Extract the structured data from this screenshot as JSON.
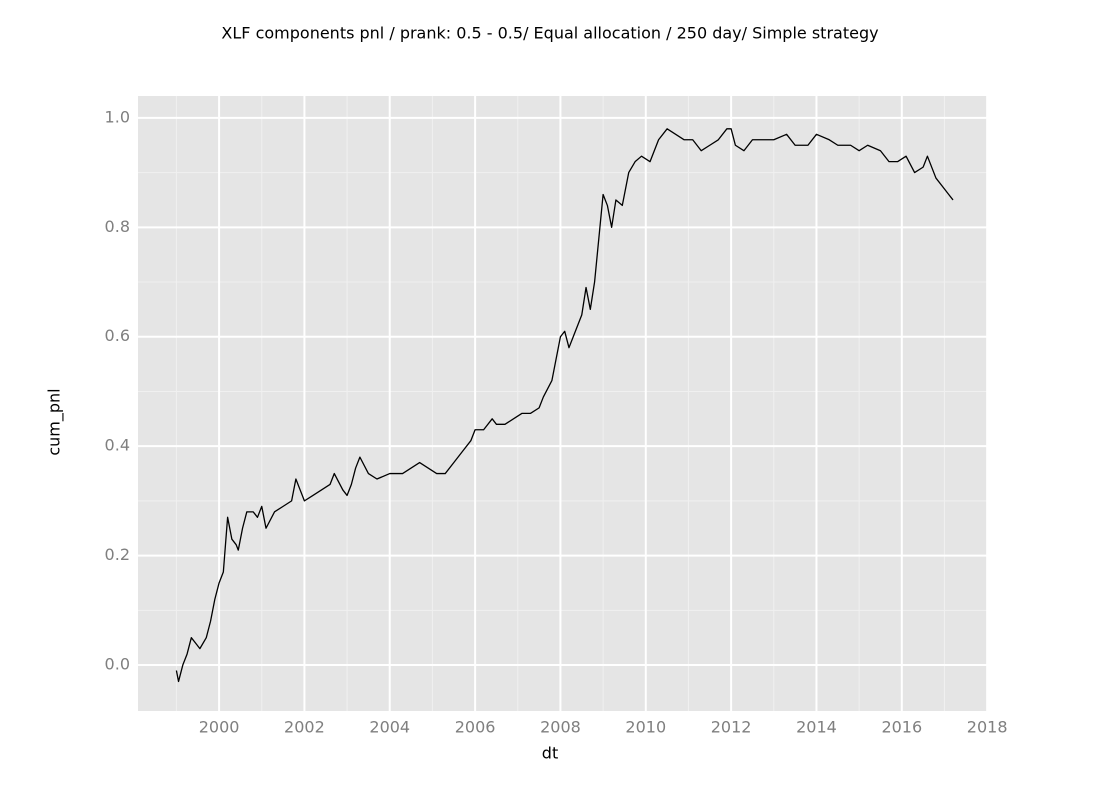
{
  "chart_data": {
    "type": "line",
    "title": "XLF components pnl / prank: 0.5 - 0.5/ Equal allocation / 250 day/ Simple strategy",
    "x_label": "dt",
    "y_label": "cum_pnl",
    "x": [
      1999.0,
      1999.05,
      1999.15,
      1999.25,
      1999.35,
      1999.45,
      1999.55,
      1999.7,
      1999.8,
      1999.9,
      2000.0,
      2000.1,
      2000.15,
      2000.2,
      2000.3,
      2000.4,
      2000.45,
      2000.55,
      2000.65,
      2000.8,
      2000.9,
      2001.0,
      2001.1,
      2001.3,
      2001.5,
      2001.7,
      2001.8,
      2001.9,
      2002.0,
      2002.2,
      2002.4,
      2002.6,
      2002.7,
      2002.9,
      2003.0,
      2003.1,
      2003.2,
      2003.3,
      2003.5,
      2003.7,
      2004.0,
      2004.3,
      2004.5,
      2004.7,
      2004.9,
      2005.1,
      2005.3,
      2005.5,
      2005.7,
      2005.9,
      2006.0,
      2006.2,
      2006.4,
      2006.5,
      2006.7,
      2006.9,
      2007.1,
      2007.3,
      2007.5,
      2007.6,
      2007.8,
      2007.9,
      2008.0,
      2008.1,
      2008.2,
      2008.3,
      2008.5,
      2008.6,
      2008.7,
      2008.8,
      2008.9,
      2009.0,
      2009.1,
      2009.2,
      2009.3,
      2009.45,
      2009.6,
      2009.75,
      2009.9,
      2010.1,
      2010.3,
      2010.5,
      2010.7,
      2010.9,
      2011.1,
      2011.3,
      2011.5,
      2011.7,
      2011.9,
      2012.0,
      2012.1,
      2012.3,
      2012.5,
      2012.7,
      2013.0,
      2013.3,
      2013.5,
      2013.8,
      2014.0,
      2014.3,
      2014.5,
      2014.8,
      2015.0,
      2015.2,
      2015.5,
      2015.7,
      2015.9,
      2016.1,
      2016.3,
      2016.5,
      2016.6,
      2016.8,
      2017.0,
      2017.1,
      2017.2
    ],
    "series": [
      {
        "color": "#000000",
        "values": [
          -0.01,
          -0.03,
          0.0,
          0.02,
          0.05,
          0.04,
          0.03,
          0.05,
          0.08,
          0.12,
          0.15,
          0.17,
          0.22,
          0.27,
          0.23,
          0.22,
          0.21,
          0.25,
          0.28,
          0.28,
          0.27,
          0.29,
          0.25,
          0.28,
          0.29,
          0.3,
          0.34,
          0.32,
          0.3,
          0.31,
          0.32,
          0.33,
          0.35,
          0.32,
          0.31,
          0.33,
          0.36,
          0.38,
          0.35,
          0.34,
          0.35,
          0.35,
          0.36,
          0.37,
          0.36,
          0.35,
          0.35,
          0.37,
          0.39,
          0.41,
          0.43,
          0.43,
          0.45,
          0.44,
          0.44,
          0.45,
          0.46,
          0.46,
          0.47,
          0.49,
          0.52,
          0.56,
          0.6,
          0.61,
          0.58,
          0.6,
          0.64,
          0.69,
          0.65,
          0.7,
          0.78,
          0.86,
          0.84,
          0.8,
          0.85,
          0.84,
          0.9,
          0.92,
          0.93,
          0.92,
          0.96,
          0.98,
          0.97,
          0.96,
          0.96,
          0.94,
          0.95,
          0.96,
          0.98,
          0.98,
          0.95,
          0.94,
          0.96,
          0.96,
          0.96,
          0.97,
          0.95,
          0.95,
          0.97,
          0.96,
          0.95,
          0.95,
          0.94,
          0.95,
          0.94,
          0.92,
          0.92,
          0.93,
          0.9,
          0.91,
          0.93,
          0.89,
          0.87,
          0.86,
          0.85
        ]
      }
    ],
    "xlim": [
      1998.1,
      2018.02
    ],
    "xticks": [
      2000,
      2002,
      2004,
      2006,
      2008,
      2010,
      2012,
      2014,
      2016,
      2018
    ],
    "ylim": [
      -0.084,
      1.04
    ],
    "yticks": [
      {
        "value": 0,
        "label": "0.0"
      },
      0.2,
      0.4,
      0.6,
      0.8,
      {
        "value": 1,
        "label": "1.0"
      }
    ],
    "grid": true
  }
}
